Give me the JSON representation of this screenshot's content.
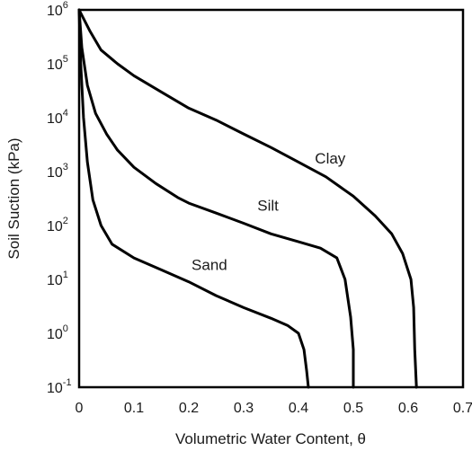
{
  "chart_data": {
    "type": "line",
    "title": "",
    "xlabel": "Volumetric Water Content, θ",
    "ylabel": "Soil Suction (kPa)",
    "xlim": [
      0,
      0.7
    ],
    "ylim": [
      0.1,
      1000000
    ],
    "y_scale": "log",
    "grid": false,
    "x_ticks": [
      "0",
      "0.1",
      "0.2",
      "0.3",
      "0.4",
      "0.5",
      "0.6",
      "0.7"
    ],
    "y_ticks": [
      {
        "base": "10",
        "exp": "6"
      },
      {
        "base": "10",
        "exp": "5"
      },
      {
        "base": "10",
        "exp": "4"
      },
      {
        "base": "10",
        "exp": "3"
      },
      {
        "base": "10",
        "exp": "2"
      },
      {
        "base": "10",
        "exp": "1"
      },
      {
        "base": "10",
        "exp": "0"
      },
      {
        "base": "10",
        "exp": "-1"
      }
    ],
    "series": [
      {
        "name": "Clay",
        "color": "#000000",
        "points": [
          [
            0,
            1000000
          ],
          [
            0.02,
            400000
          ],
          [
            0.04,
            180000
          ],
          [
            0.07,
            100000
          ],
          [
            0.1,
            60000
          ],
          [
            0.15,
            30000
          ],
          [
            0.2,
            15000
          ],
          [
            0.25,
            9000
          ],
          [
            0.3,
            5000
          ],
          [
            0.35,
            2800
          ],
          [
            0.4,
            1500
          ],
          [
            0.45,
            800
          ],
          [
            0.5,
            350
          ],
          [
            0.54,
            150
          ],
          [
            0.57,
            70
          ],
          [
            0.59,
            30
          ],
          [
            0.605,
            10
          ],
          [
            0.61,
            3
          ],
          [
            0.612,
            0.5
          ],
          [
            0.615,
            0.1
          ]
        ]
      },
      {
        "name": "Silt",
        "color": "#000000",
        "points": [
          [
            0,
            1000000
          ],
          [
            0.005,
            200000
          ],
          [
            0.015,
            40000
          ],
          [
            0.03,
            12000
          ],
          [
            0.05,
            5000
          ],
          [
            0.07,
            2500
          ],
          [
            0.1,
            1200
          ],
          [
            0.14,
            600
          ],
          [
            0.18,
            330
          ],
          [
            0.2,
            260
          ],
          [
            0.25,
            170
          ],
          [
            0.3,
            110
          ],
          [
            0.35,
            70
          ],
          [
            0.4,
            50
          ],
          [
            0.44,
            38
          ],
          [
            0.47,
            25
          ],
          [
            0.485,
            10
          ],
          [
            0.495,
            2
          ],
          [
            0.5,
            0.5
          ],
          [
            0.5,
            0.1
          ]
        ]
      },
      {
        "name": "Sand",
        "color": "#000000",
        "points": [
          [
            0,
            1000000
          ],
          [
            0.003,
            100000
          ],
          [
            0.008,
            10000
          ],
          [
            0.015,
            1500
          ],
          [
            0.025,
            300
          ],
          [
            0.04,
            100
          ],
          [
            0.06,
            45
          ],
          [
            0.1,
            25
          ],
          [
            0.15,
            15
          ],
          [
            0.2,
            9
          ],
          [
            0.25,
            5
          ],
          [
            0.3,
            3
          ],
          [
            0.35,
            1.9
          ],
          [
            0.38,
            1.4
          ],
          [
            0.4,
            1.0
          ],
          [
            0.41,
            0.5
          ],
          [
            0.415,
            0.2
          ],
          [
            0.418,
            0.1
          ]
        ]
      }
    ],
    "annotations": [
      {
        "text": "Clay",
        "x": 0.43,
        "y": 1400
      },
      {
        "text": "Silt",
        "x": 0.325,
        "y": 190
      },
      {
        "text": "Sand",
        "x": 0.205,
        "y": 15
      }
    ]
  }
}
